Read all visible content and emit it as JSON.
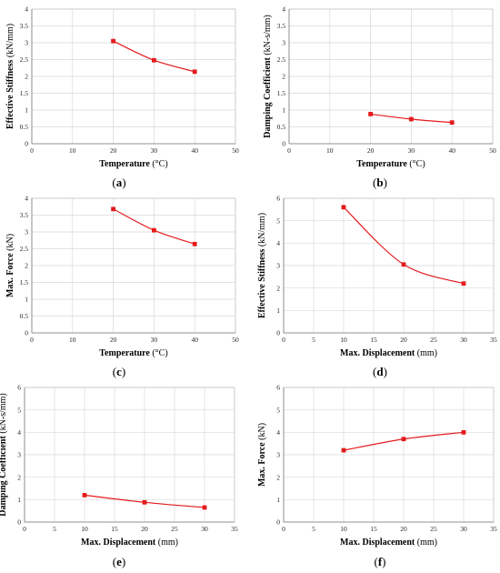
{
  "chart_data": [
    {
      "id": "a",
      "panel_label": "a",
      "type": "line",
      "x": [
        20,
        30,
        40
      ],
      "y": [
        3.05,
        2.48,
        2.14
      ],
      "xlabel_main": "Temperature",
      "xlabel_unit": " (°C)",
      "ylabel_main": "Effective Stiffness",
      "ylabel_unit": " (kN/mm)",
      "xlim": [
        0,
        50
      ],
      "xticks": [
        0,
        10,
        20,
        30,
        40,
        50
      ],
      "ylim": [
        0,
        4
      ],
      "yticks": [
        0,
        0.5,
        1,
        1.5,
        2,
        2.5,
        3,
        3.5,
        4
      ],
      "grid": true,
      "color": "#e41a1c"
    },
    {
      "id": "b",
      "panel_label": "b",
      "type": "line",
      "x": [
        20,
        30,
        40
      ],
      "y": [
        0.88,
        0.73,
        0.63
      ],
      "xlabel_main": "Temperature",
      "xlabel_unit": " (°C)",
      "ylabel_main": "Damping Coefficient",
      "ylabel_unit": " (kN-s/mm)",
      "xlim": [
        0,
        50
      ],
      "xticks": [
        0,
        10,
        20,
        30,
        40,
        50
      ],
      "ylim": [
        0,
        4
      ],
      "yticks": [
        0,
        0.5,
        1,
        1.5,
        2,
        2.5,
        3,
        3.5,
        4
      ],
      "grid": true,
      "color": "#e41a1c"
    },
    {
      "id": "c",
      "panel_label": "c",
      "type": "line",
      "x": [
        20,
        30,
        40
      ],
      "y": [
        3.68,
        3.05,
        2.64
      ],
      "xlabel_main": "Temperature",
      "xlabel_unit": " (°C)",
      "ylabel_main": "Max. Force",
      "ylabel_unit": " (kN)",
      "xlim": [
        0,
        50
      ],
      "xticks": [
        0,
        10,
        20,
        30,
        40,
        50
      ],
      "ylim": [
        0,
        4
      ],
      "yticks": [
        0,
        0.5,
        1,
        1.5,
        2,
        2.5,
        3,
        3.5,
        4
      ],
      "grid": true,
      "color": "#e41a1c"
    },
    {
      "id": "d",
      "panel_label": "d",
      "type": "line",
      "x": [
        10,
        20,
        30
      ],
      "y": [
        5.6,
        3.05,
        2.2
      ],
      "xlabel_main": "Max. Displacement",
      "xlabel_unit": " (mm)",
      "ylabel_main": "Effective Stiffness",
      "ylabel_unit": " (kN/mm)",
      "xlim": [
        0,
        35
      ],
      "xticks": [
        0,
        5,
        10,
        15,
        20,
        25,
        30,
        35
      ],
      "ylim": [
        0,
        6
      ],
      "yticks": [
        0,
        1,
        2,
        3,
        4,
        5,
        6
      ],
      "grid": true,
      "color": "#e41a1c"
    },
    {
      "id": "e",
      "panel_label": "e",
      "type": "line",
      "x": [
        10,
        20,
        30
      ],
      "y": [
        1.2,
        0.88,
        0.65
      ],
      "xlabel_main": "Max. Displacement",
      "xlabel_unit": " (mm)",
      "ylabel_main": "Damping Coefficient",
      "ylabel_unit": " (kN-s/mm)",
      "xlim": [
        0,
        35
      ],
      "xticks": [
        0,
        5,
        10,
        15,
        20,
        25,
        30,
        35
      ],
      "ylim": [
        0,
        6
      ],
      "yticks": [
        0,
        1,
        2,
        3,
        4,
        5,
        6
      ],
      "grid": true,
      "color": "#e41a1c"
    },
    {
      "id": "f",
      "panel_label": "f",
      "type": "line",
      "x": [
        10,
        20,
        30
      ],
      "y": [
        3.2,
        3.7,
        4.0
      ],
      "xlabel_main": "Max. Displacement",
      "xlabel_unit": " (mm)",
      "ylabel_main": "Max. Force",
      "ylabel_unit": " (kN)",
      "xlim": [
        0,
        35
      ],
      "xticks": [
        0,
        5,
        10,
        15,
        20,
        25,
        30,
        35
      ],
      "ylim": [
        0,
        6
      ],
      "yticks": [
        0,
        1,
        2,
        3,
        4,
        5,
        6
      ],
      "grid": true,
      "color": "#e41a1c"
    }
  ]
}
